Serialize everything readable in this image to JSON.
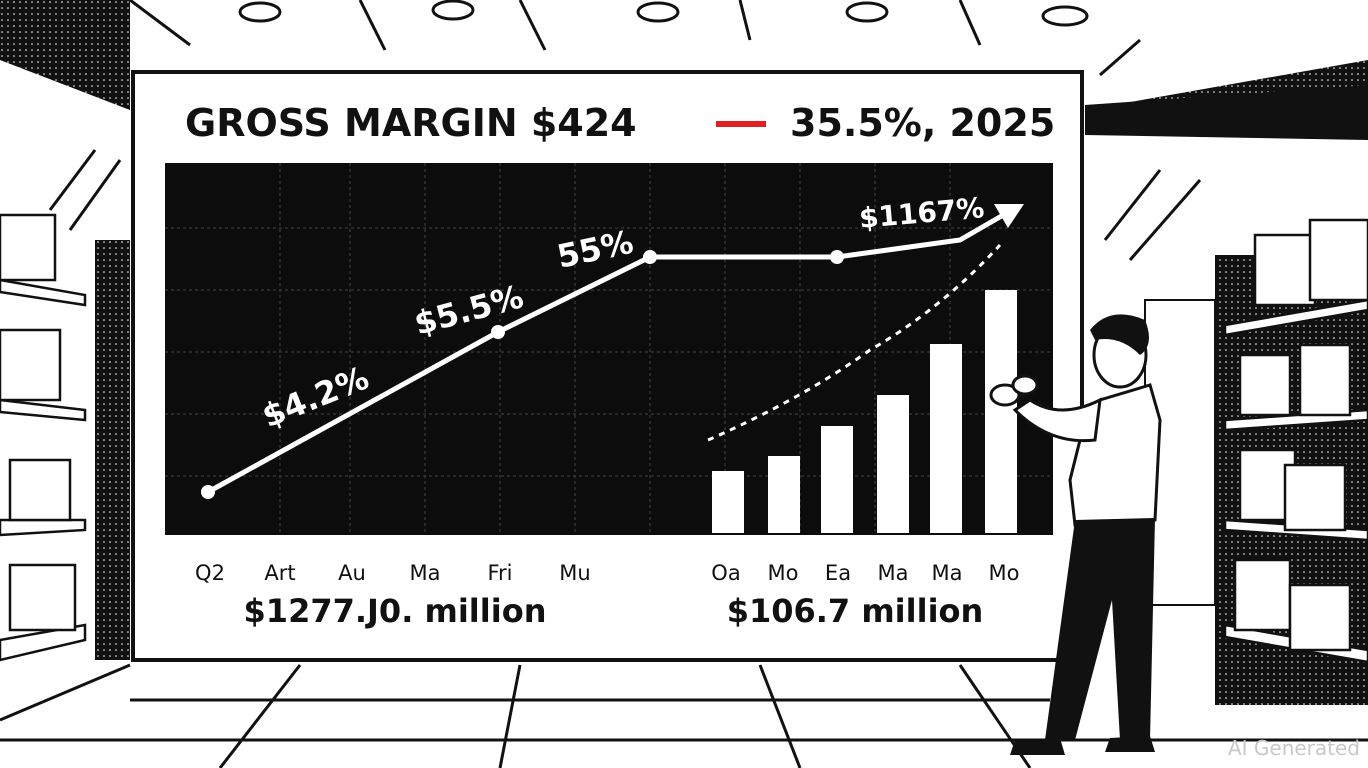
{
  "title": "GROSS MARGIN $424",
  "legend_label": "35.5%, 2025",
  "line_labels": [
    "$4.2%",
    "$5.5%",
    "55%",
    "$1167%"
  ],
  "left_axis_labels": [
    "Q2",
    "Art",
    "Au",
    "Ma",
    "Fri",
    "Mu"
  ],
  "right_axis_labels": [
    "Oa",
    "Mo",
    "Ea",
    "Ma",
    "Ma",
    "Mo"
  ],
  "left_total": "$1277.J0. million",
  "right_total": "$106.7 million",
  "watermark": "AI Generated"
}
